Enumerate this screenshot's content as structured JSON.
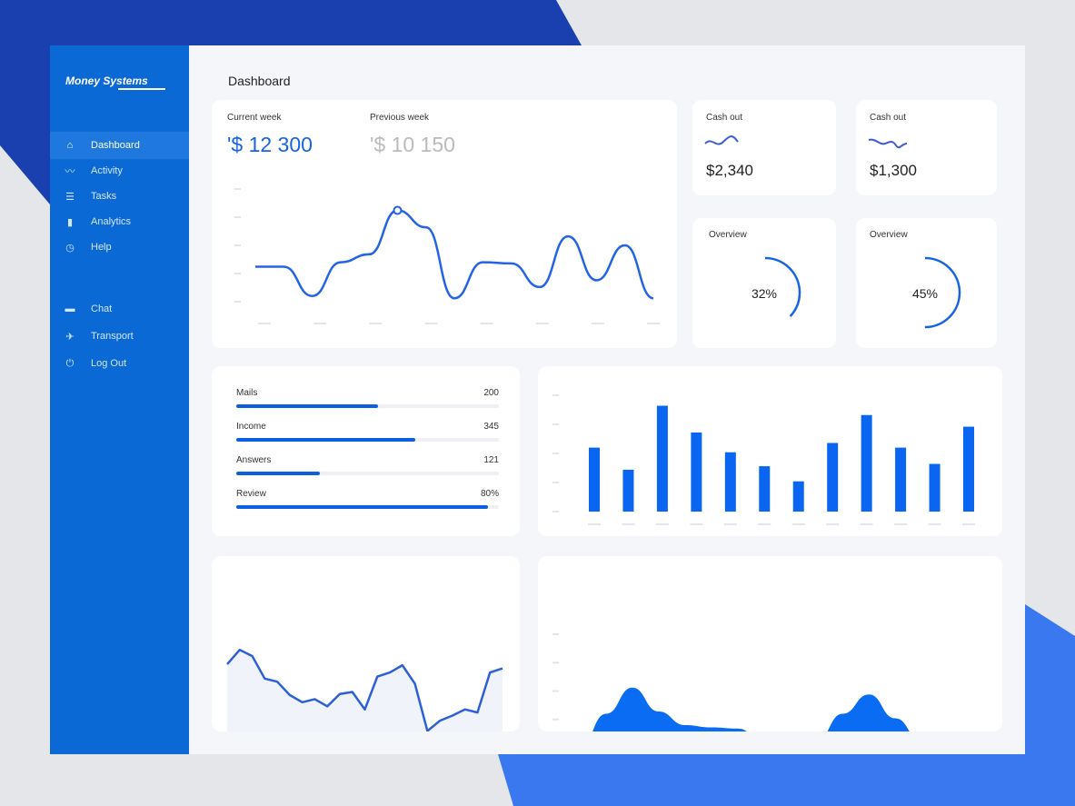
{
  "colors": {
    "brand": "#0b69d6",
    "accent": "#0a66f0",
    "background_dark": "#1940ae",
    "background_light": "#3a78ef"
  },
  "sidebar": {
    "logo": "Money Systems",
    "items": [
      {
        "label": "Dashboard",
        "icon": "home-icon",
        "glyph": "⌂",
        "active": true
      },
      {
        "label": "Activity",
        "icon": "activity-icon",
        "glyph": "〰"
      },
      {
        "label": "Tasks",
        "icon": "tasks-icon",
        "glyph": "☰"
      },
      {
        "label": "Analytics",
        "icon": "analytics-icon",
        "glyph": "▮"
      },
      {
        "label": "Help",
        "icon": "help-icon",
        "glyph": "◷"
      },
      {
        "label": "Chat",
        "icon": "chat-icon",
        "glyph": "▬"
      },
      {
        "label": "Transport",
        "icon": "plane-icon",
        "glyph": "✈"
      },
      {
        "label": "Log Out",
        "icon": "power-icon",
        "glyph": "⏻"
      }
    ]
  },
  "header": {
    "title": "Dashboard"
  },
  "weekly": {
    "current_label": "Current week",
    "current_value": "'$ 12 300",
    "previous_label": "Previous week",
    "previous_value": "'$ 10 150"
  },
  "cash_out": [
    {
      "label": "Cash out",
      "value": "$2,340"
    },
    {
      "label": "Cash out",
      "value": "$1,300"
    }
  ],
  "overview": [
    {
      "label": "Overview",
      "value": "32%",
      "percent": 32
    },
    {
      "label": "Overview",
      "value": "45%",
      "percent": 45
    }
  ],
  "stats": [
    {
      "label": "Mails",
      "value": "200",
      "fill": 0.54
    },
    {
      "label": "Income",
      "value": "345",
      "fill": 0.68
    },
    {
      "label": "Answers",
      "value": "121",
      "fill": 0.32
    },
    {
      "label": "Review",
      "value": "80%",
      "fill": 0.96
    }
  ],
  "chart_data": [
    {
      "type": "line",
      "smooth": true,
      "ylim": [
        0,
        100
      ],
      "values": [
        31,
        31,
        5,
        35,
        42,
        81,
        66,
        3,
        35,
        34,
        13,
        58,
        19,
        50,
        3
      ],
      "highlight_index": 5,
      "grid": false
    },
    {
      "type": "bar",
      "ylim": [
        0,
        100
      ],
      "values": [
        55,
        36,
        91,
        68,
        51,
        39,
        26,
        59,
        83,
        55,
        41,
        73
      ],
      "grid": false
    },
    {
      "type": "area",
      "ylim": [
        0,
        100
      ],
      "values": [
        77,
        91,
        85,
        63,
        60,
        47,
        40,
        43,
        36,
        48,
        50,
        33,
        65,
        69,
        76,
        58,
        12,
        22,
        27,
        33,
        30,
        69,
        73
      ],
      "grid": false
    },
    {
      "type": "area",
      "smooth": true,
      "ylim": [
        0,
        100
      ],
      "values": [
        0,
        30,
        53,
        32,
        20,
        18,
        17,
        6,
        1,
        6,
        30,
        47,
        26,
        6,
        6,
        1
      ],
      "grid": false
    }
  ]
}
